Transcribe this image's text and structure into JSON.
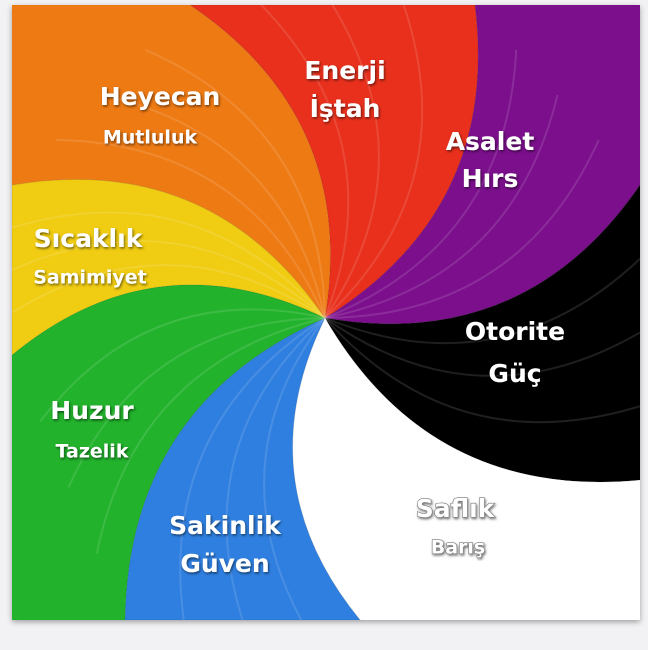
{
  "segments": [
    {
      "color": "#e8301c",
      "lines": [
        "Enerji",
        "İştah"
      ]
    },
    {
      "color": "#7b0f8c",
      "lines": [
        "Asalet",
        "Hırs"
      ]
    },
    {
      "color": "#000000",
      "lines": [
        "Otorite",
        "Güç"
      ]
    },
    {
      "color": "#ffffff",
      "lines": [
        "Saflık",
        "Barış"
      ]
    },
    {
      "color": "#2f7fe0",
      "lines": [
        "Sakinlik",
        "Güven"
      ]
    },
    {
      "color": "#22b22c",
      "lines": [
        "Huzur",
        "Tazelik"
      ]
    },
    {
      "color": "#f0cc12",
      "lines": [
        "Sıcaklık",
        "Samimiyet"
      ]
    },
    {
      "color": "#ee7a14",
      "lines": [
        "Heyecan",
        "Mutluluk"
      ]
    }
  ]
}
